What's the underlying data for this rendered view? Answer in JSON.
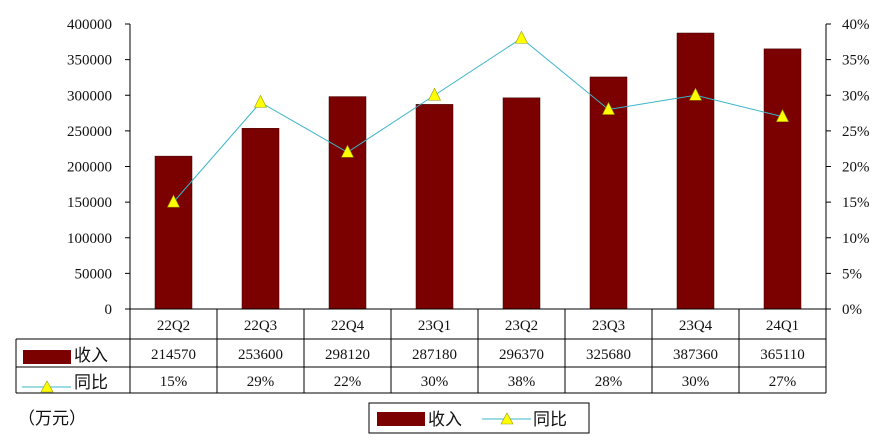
{
  "chart_data": {
    "type": "bar+line",
    "categories": [
      "22Q2",
      "22Q3",
      "22Q4",
      "23Q1",
      "23Q2",
      "23Q3",
      "23Q4",
      "24Q1"
    ],
    "series": [
      {
        "name": "收入",
        "type": "bar",
        "axis": "left",
        "color": "#7b0000",
        "values": [
          214570,
          253600,
          298120,
          287180,
          296370,
          325680,
          387360,
          365110
        ],
        "labels": [
          "214570",
          "253600",
          "298120",
          "287180",
          "296370",
          "325680",
          "387360",
          "365110"
        ]
      },
      {
        "name": "同比",
        "type": "line",
        "axis": "right",
        "color": "#3ab4c8",
        "marker": "yellow-triangle",
        "values": [
          15,
          29,
          22,
          30,
          38,
          28,
          30,
          27
        ],
        "labels": [
          "15%",
          "29%",
          "22%",
          "30%",
          "38%",
          "28%",
          "30%",
          "27%"
        ]
      }
    ],
    "y_left": {
      "lim": [
        0,
        400000
      ],
      "ticks": [
        "0",
        "50000",
        "100000",
        "150000",
        "200000",
        "250000",
        "300000",
        "350000",
        "400000"
      ]
    },
    "y_right": {
      "lim": [
        0,
        40
      ],
      "ticks": [
        "0%",
        "5%",
        "10%",
        "15%",
        "20%",
        "25%",
        "30%",
        "35%",
        "40%"
      ]
    },
    "unit_note": "（万元）",
    "grid": false,
    "legend": "bottom",
    "data_table": true
  }
}
